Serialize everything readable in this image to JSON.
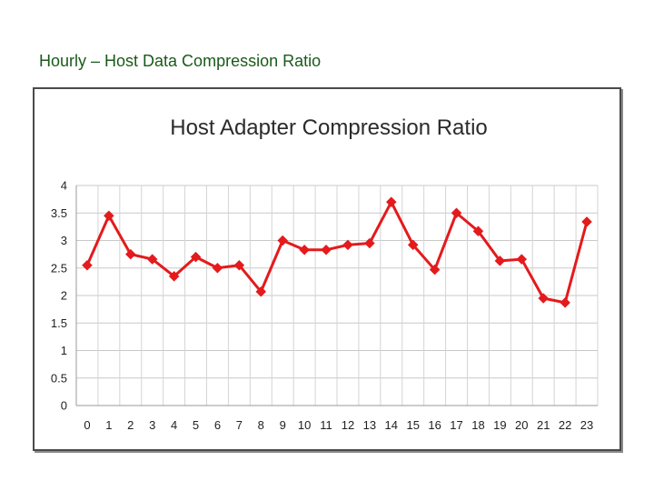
{
  "slide": {
    "title": "Hourly – Host Data Compression Ratio"
  },
  "chart_data": {
    "type": "line",
    "title": "Host Adapter Compression Ratio",
    "xlabel": "",
    "ylabel": "",
    "x": [
      0,
      1,
      2,
      3,
      4,
      5,
      6,
      7,
      8,
      9,
      10,
      11,
      12,
      13,
      14,
      15,
      16,
      17,
      18,
      19,
      20,
      21,
      22,
      23
    ],
    "x_tick_labels": [
      "0",
      "1",
      "2",
      "3",
      "4",
      "5",
      "6",
      "7",
      "8",
      "9",
      "10",
      "11",
      "12",
      "13",
      "14",
      "15",
      "16",
      "17",
      "18",
      "19",
      "20",
      "21",
      "22",
      "23"
    ],
    "series": [
      {
        "values": [
          2.55,
          3.45,
          2.75,
          2.66,
          2.35,
          2.7,
          2.5,
          2.55,
          2.07,
          3.0,
          2.83,
          2.83,
          2.92,
          2.95,
          3.7,
          2.92,
          2.47,
          3.5,
          3.17,
          2.63,
          2.66,
          1.95,
          1.87,
          3.34
        ],
        "color": "#e41a1c",
        "marker": "diamond"
      }
    ],
    "ylim": [
      0,
      4
    ],
    "y_ticks": [
      0,
      0.5,
      1,
      1.5,
      2,
      2.5,
      3,
      3.5,
      4
    ],
    "y_tick_labels": [
      "0",
      "0.5",
      "1",
      "1.5",
      "2",
      "2.5",
      "3",
      "3.5",
      "4"
    ],
    "grid": true,
    "legend": "none"
  }
}
